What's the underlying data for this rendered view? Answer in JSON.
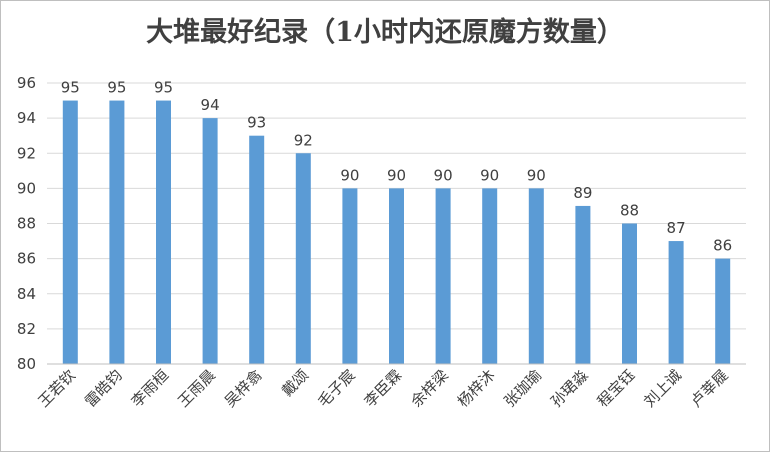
{
  "chart_data": {
    "type": "bar",
    "title": "大堆最好纪录（1小时内还原魔方数量）",
    "categories": [
      "王若钦",
      "雷皓钧",
      "李雨桓",
      "王雨晨",
      "吴梓翕",
      "戴颂",
      "毛子宸",
      "李臣霖",
      "余梓梁",
      "杨梓沐",
      "张珈瑜",
      "孙珺淼",
      "程宝钰",
      "刘上诚",
      "卢莘屣"
    ],
    "values": [
      95,
      95,
      95,
      94,
      93,
      92,
      90,
      90,
      90,
      90,
      90,
      89,
      88,
      87,
      86
    ],
    "ylim": [
      80,
      96
    ],
    "yticks": [
      80,
      82,
      84,
      86,
      88,
      90,
      92,
      94,
      96
    ],
    "grid": true,
    "legend": "none",
    "data_labels": true
  },
  "colors": {
    "bar": "#5b9bd5",
    "grid": "#d9d9d9",
    "axis": "#bfbfbf",
    "text": "#404040",
    "border": "#bfbfbf"
  }
}
